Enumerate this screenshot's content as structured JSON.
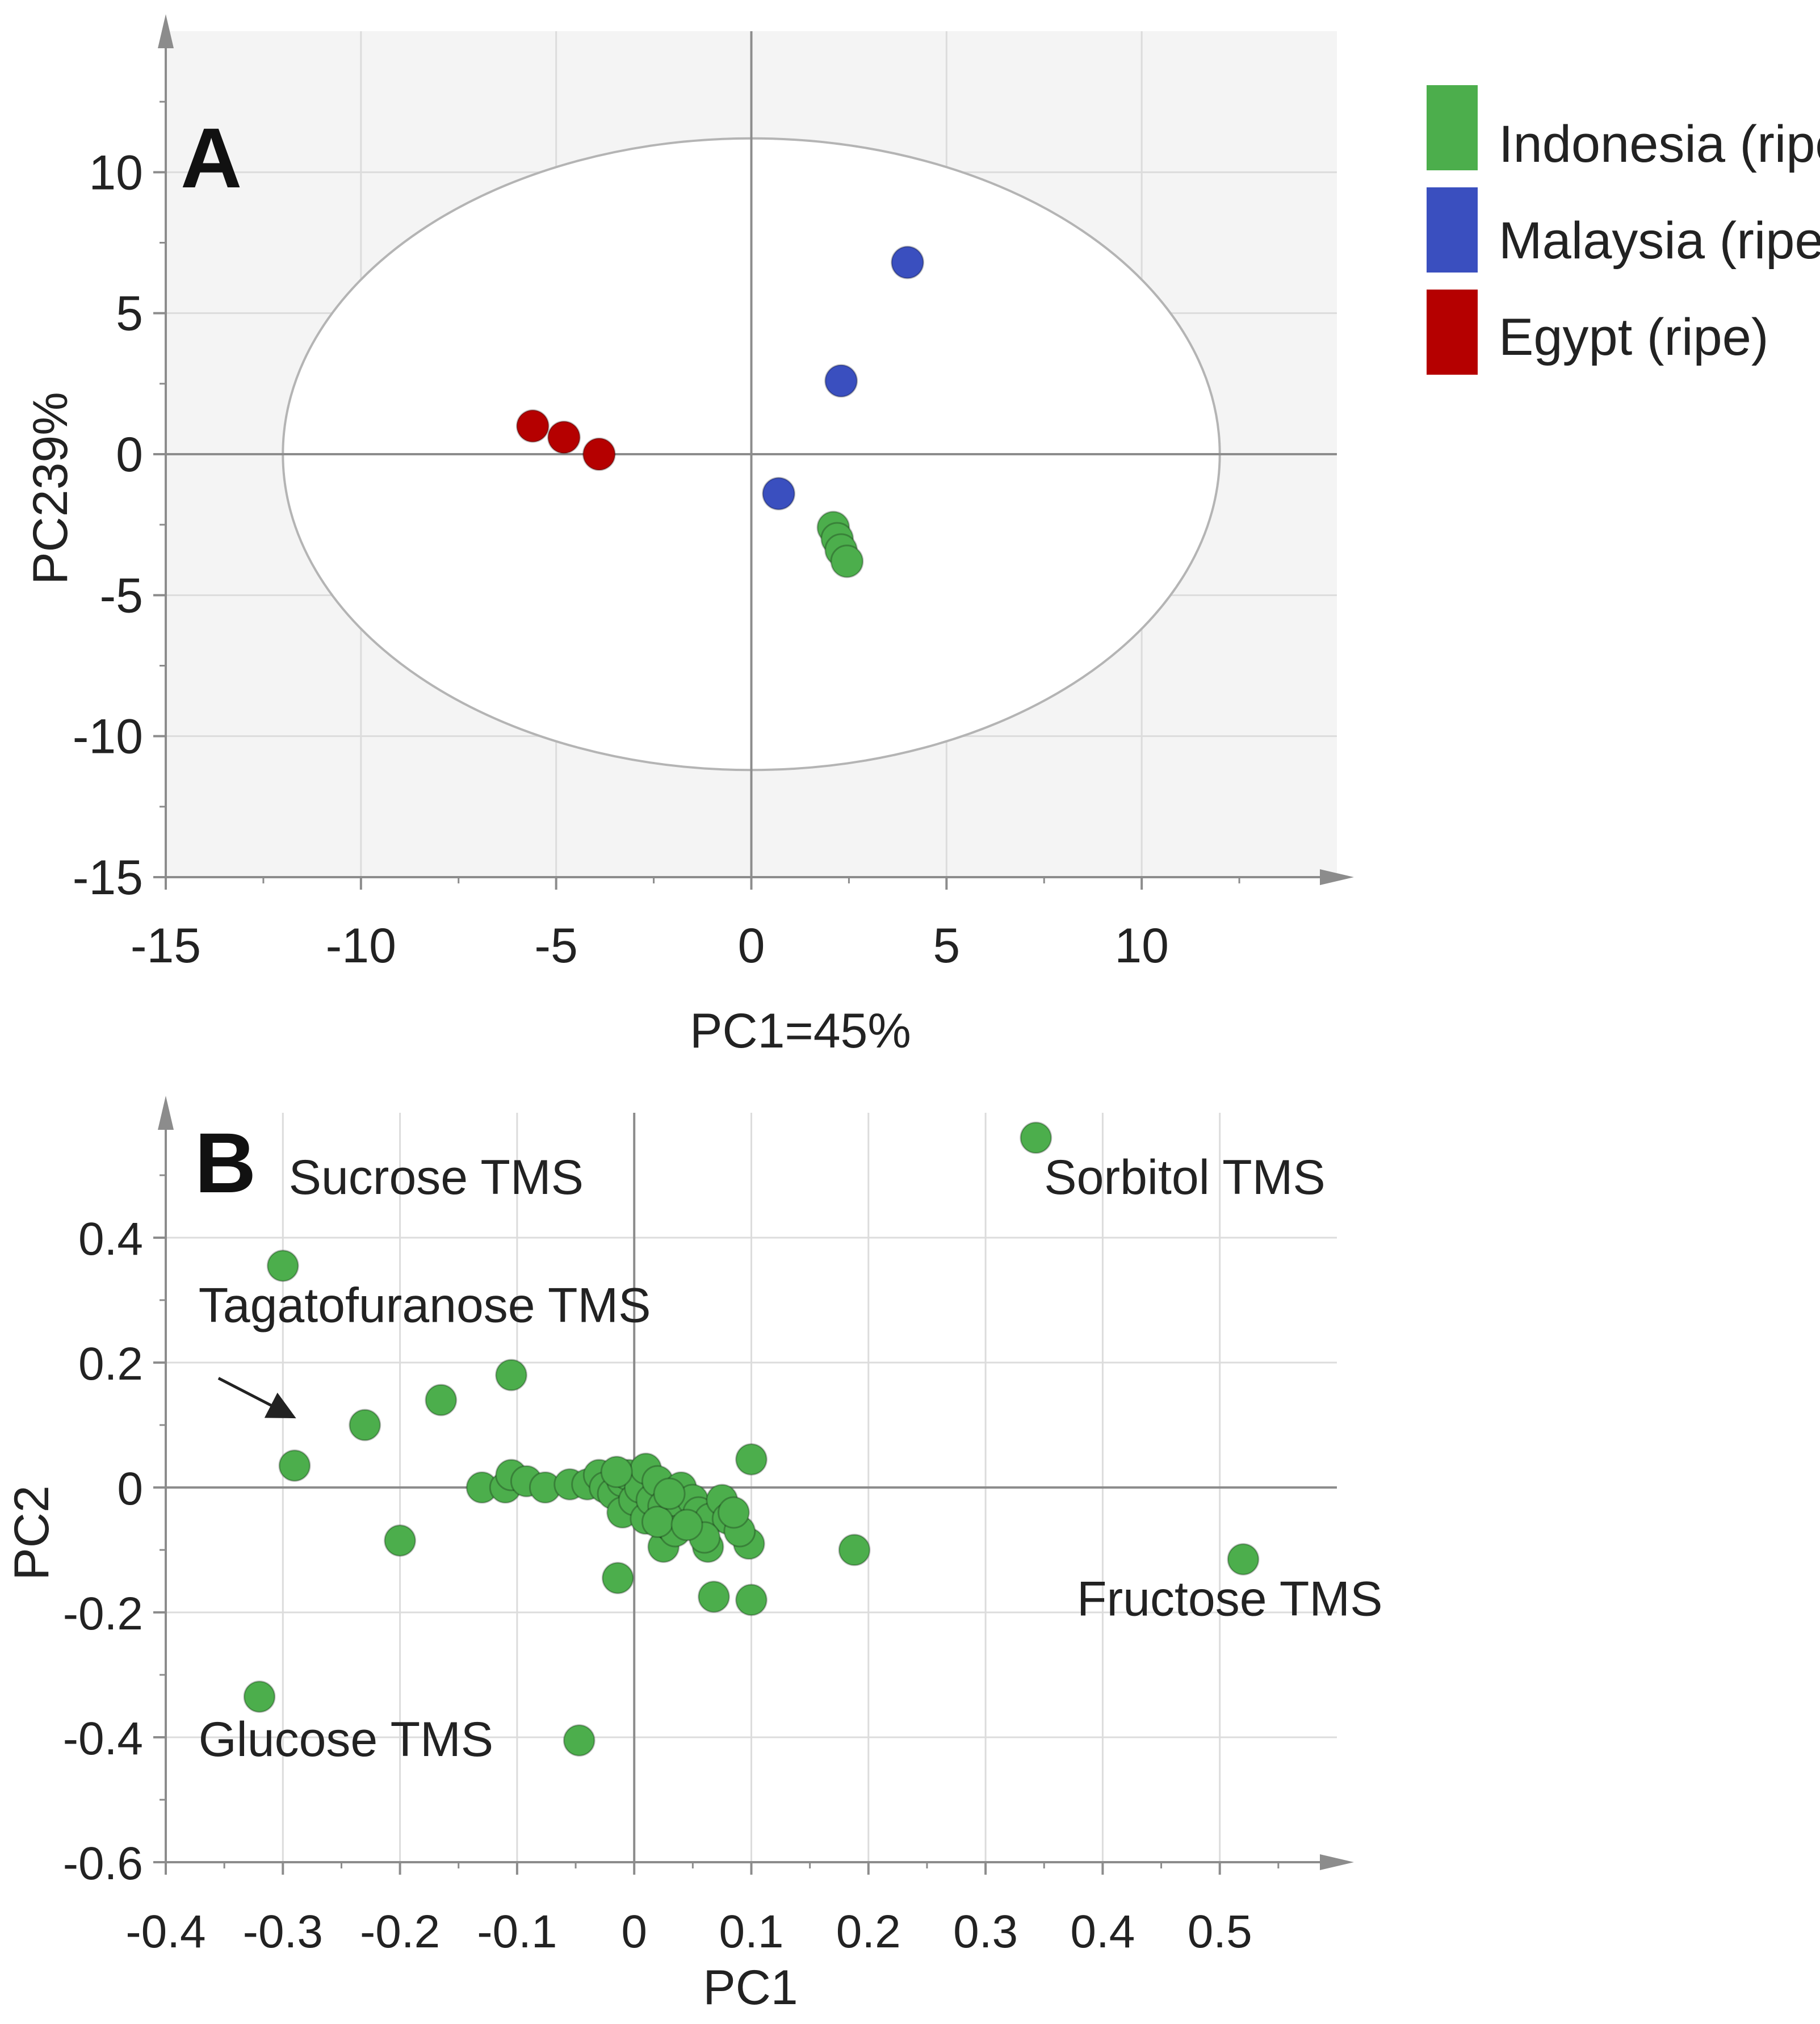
{
  "colors": {
    "plot_background": "#f4f4f4",
    "grid": "#dcdcdc",
    "axis": "#8c8c8c",
    "ellipse": "#b4b4b4",
    "text": "#222222"
  },
  "legend": {
    "placement": "top-right",
    "items": [
      {
        "label": "Indonesia (ripe)",
        "color": "#4cae4c"
      },
      {
        "label": "Malaysia (ripe)",
        "color": "#3a4fbf"
      },
      {
        "label": "Egypt (ripe)",
        "color": "#b50000"
      }
    ]
  },
  "chart_data": [
    {
      "type": "scatter",
      "panel_label": "A",
      "xlabel": "PC1=45%",
      "ylabel": "PC239%",
      "xlim": [
        -15,
        15
      ],
      "ylim": [
        -15,
        15
      ],
      "xticks": [
        -15,
        -10,
        -5,
        0,
        5,
        10
      ],
      "yticks": [
        -15,
        -10,
        -5,
        0,
        5,
        10
      ],
      "xtick_labels": [
        "-15",
        "-10",
        "-5",
        "0",
        "5",
        "10"
      ],
      "ytick_labels": [
        "-15",
        "-10",
        "-5",
        "0",
        "5",
        "10"
      ],
      "grid": true,
      "hotelling_ellipse": {
        "rx": 12,
        "ry": 11.2
      },
      "series": [
        {
          "name": "Indonesia (ripe)",
          "color": "#4cae4c",
          "x": [
            2.1,
            2.2,
            2.3,
            2.45
          ],
          "y": [
            -2.6,
            -3.0,
            -3.4,
            -3.8
          ]
        },
        {
          "name": "Malaysia (ripe)",
          "color": "#3a4fbf",
          "x": [
            4.0,
            2.3,
            0.7
          ],
          "y": [
            6.8,
            2.6,
            -1.4
          ]
        },
        {
          "name": "Egypt (ripe)",
          "color": "#b50000",
          "x": [
            -5.6,
            -4.8,
            -3.9
          ],
          "y": [
            1.0,
            0.6,
            0.0
          ]
        }
      ]
    },
    {
      "type": "scatter",
      "panel_label": "B",
      "xlabel": "PC1",
      "ylabel": "PC2",
      "xlim": [
        -0.4,
        0.6
      ],
      "ylim": [
        -0.6,
        0.6
      ],
      "xticks": [
        -0.4,
        -0.3,
        -0.2,
        -0.1,
        0,
        0.1,
        0.2,
        0.3,
        0.4,
        0.5
      ],
      "yticks": [
        -0.6,
        -0.4,
        -0.2,
        0,
        0.2,
        0.4
      ],
      "xtick_labels": [
        "-0.4",
        "-0.3",
        "-0.2",
        "-0.1",
        "0",
        "0.1",
        "0.2",
        "0.3",
        "0.4",
        "0.5"
      ],
      "ytick_labels": [
        "-0.6",
        "-0.4",
        "-0.2",
        "0",
        "0.2",
        "0.4"
      ],
      "grid": true,
      "point_color": "#4cae4c",
      "points": [
        [
          0.343,
          0.56
        ],
        [
          -0.3,
          0.355
        ],
        [
          -0.105,
          0.18
        ],
        [
          -0.165,
          0.14
        ],
        [
          -0.23,
          0.1
        ],
        [
          -0.29,
          0.035
        ],
        [
          0.1,
          0.045
        ],
        [
          -0.2,
          -0.085
        ],
        [
          -0.32,
          -0.335
        ],
        [
          -0.047,
          -0.405
        ],
        [
          0.52,
          -0.115
        ],
        [
          0.188,
          -0.1
        ],
        [
          0.1,
          -0.18
        ],
        [
          0.068,
          -0.175
        ],
        [
          -0.014,
          -0.145
        ],
        [
          0.098,
          -0.09
        ],
        [
          0.063,
          -0.095
        ],
        [
          0.025,
          -0.095
        ],
        [
          -0.13,
          0.0
        ],
        [
          -0.11,
          0.0
        ],
        [
          -0.105,
          0.02
        ],
        [
          -0.092,
          0.01
        ],
        [
          -0.076,
          0.0
        ],
        [
          -0.055,
          0.005
        ],
        [
          -0.04,
          0.005
        ],
        [
          -0.03,
          0.02
        ],
        [
          -0.025,
          0.0
        ],
        [
          -0.018,
          -0.01
        ],
        [
          -0.01,
          0.01
        ],
        [
          -0.01,
          -0.04
        ],
        [
          -0.005,
          0.02
        ],
        [
          0.0,
          -0.02
        ],
        [
          0.005,
          0.0
        ],
        [
          0.01,
          0.03
        ],
        [
          0.01,
          -0.05
        ],
        [
          0.015,
          -0.02
        ],
        [
          0.02,
          0.01
        ],
        [
          0.025,
          -0.03
        ],
        [
          0.03,
          -0.06
        ],
        [
          0.04,
          -0.04
        ],
        [
          0.04,
          0.0
        ],
        [
          0.05,
          -0.02
        ],
        [
          0.055,
          -0.04
        ],
        [
          0.065,
          -0.05
        ],
        [
          0.075,
          -0.02
        ],
        [
          0.08,
          -0.05
        ],
        [
          0.09,
          -0.07
        ],
        [
          0.06,
          -0.08
        ],
        [
          0.035,
          -0.07
        ],
        [
          0.02,
          -0.055
        ],
        [
          -0.015,
          0.025
        ],
        [
          0.03,
          -0.01
        ],
        [
          0.045,
          -0.06
        ],
        [
          0.085,
          -0.04
        ]
      ],
      "annotations": [
        {
          "text": "Sucrose TMS",
          "x": -0.295,
          "y": 0.47
        },
        {
          "text": "Sorbitol TMS",
          "x": 0.35,
          "y": 0.47
        },
        {
          "text": "Tagatofuranose TMS",
          "x": -0.372,
          "y": 0.265
        },
        {
          "text": "Fructose TMS",
          "x": 0.378,
          "y": -0.205
        },
        {
          "text": "Glucose TMS",
          "x": -0.372,
          "y": -0.43
        }
      ],
      "arrow": {
        "from": [
          -0.355,
          0.175
        ],
        "to": [
          -0.293,
          0.115
        ]
      }
    }
  ]
}
